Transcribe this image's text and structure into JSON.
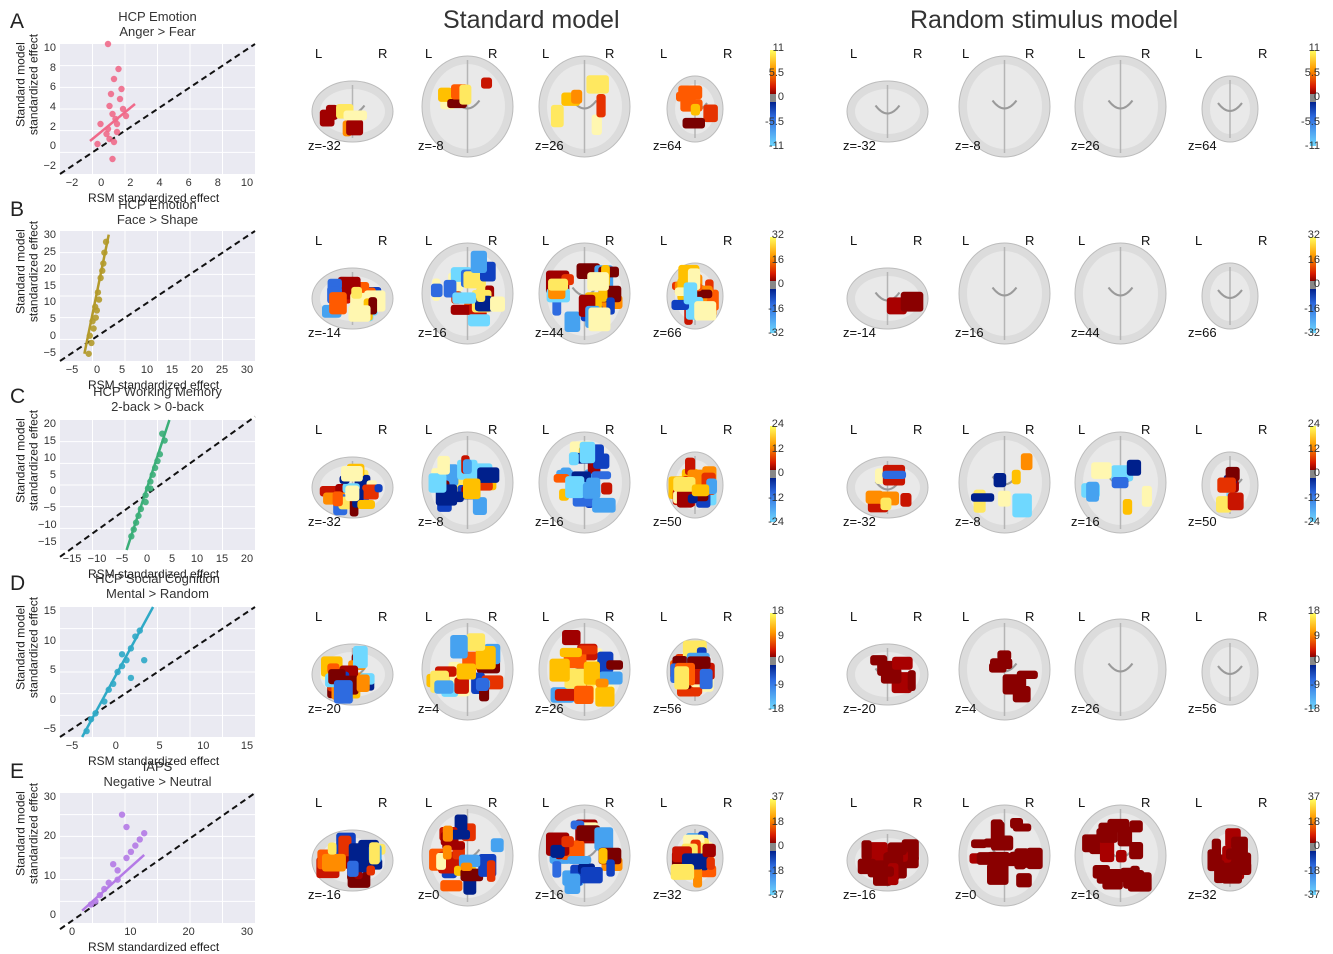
{
  "headings": {
    "standard": "Standard model",
    "random": "Random stimulus model"
  },
  "lr": {
    "left": "L",
    "right": "R"
  },
  "panels": [
    {
      "letter": "A",
      "title1": "HCP Emotion",
      "title2": "Anger > Fear",
      "ylabel1": "Standard model",
      "ylabel2": "standardized effect",
      "xlabel": "RSM standardized effect",
      "xticks": [
        "−2",
        "0",
        "2",
        "4",
        "6",
        "8",
        "10"
      ],
      "yticks": [
        "10",
        "8",
        "6",
        "4",
        "2",
        "0",
        "−2"
      ],
      "color": "#f06a8a",
      "zs": [
        "z=-32",
        "z=-8",
        "z=26",
        "z=64"
      ],
      "cbar": [
        "11",
        "5.5",
        "0",
        "-5.5",
        "-11"
      ]
    },
    {
      "letter": "B",
      "title1": "HCP Emotion",
      "title2": "Face > Shape",
      "ylabel1": "Standard model",
      "ylabel2": "standardized effect",
      "xlabel": "RSM standardized effect",
      "xticks": [
        "−5",
        "0",
        "5",
        "10",
        "15",
        "20",
        "25",
        "30"
      ],
      "yticks": [
        "30",
        "25",
        "20",
        "15",
        "10",
        "5",
        "0",
        "−5"
      ],
      "color": "#b39a2a",
      "zs": [
        "z=-14",
        "z=16",
        "z=44",
        "z=66"
      ],
      "cbar": [
        "32",
        "16",
        "0",
        "-16",
        "-32"
      ]
    },
    {
      "letter": "C",
      "title1": "HCP Working Memory",
      "title2": "2-back > 0-back",
      "ylabel1": "Standard model",
      "ylabel2": "standardized effect",
      "xlabel": "RSM standardized effect",
      "xticks": [
        "−15",
        "−10",
        "−5",
        "0",
        "5",
        "10",
        "15",
        "20"
      ],
      "yticks": [
        "20",
        "15",
        "10",
        "5",
        "0",
        "−5",
        "−10",
        "−15"
      ],
      "color": "#3aae78",
      "zs": [
        "z=-32",
        "z=-8",
        "z=16",
        "z=50"
      ],
      "cbar": [
        "24",
        "12",
        "0",
        "-12",
        "-24"
      ]
    },
    {
      "letter": "D",
      "title1": "HCP Social Cognition",
      "title2": "Mental > Random",
      "ylabel1": "Standard model",
      "ylabel2": "standardized effect",
      "xlabel": "RSM standardized effect",
      "xticks": [
        "−5",
        "0",
        "5",
        "10",
        "15"
      ],
      "yticks": [
        "15",
        "10",
        "5",
        "0",
        "−5"
      ],
      "color": "#2ea9c6",
      "zs": [
        "z=-20",
        "z=4",
        "z=26",
        "z=56"
      ],
      "cbar": [
        "18",
        "9",
        "0",
        "-9",
        "-18"
      ]
    },
    {
      "letter": "E",
      "title1": "IAPS",
      "title2": "Negative > Neutral",
      "ylabel1": "Standard model",
      "ylabel2": "standardized effect",
      "xlabel": "RSM standardized effect",
      "xticks": [
        "0",
        "10",
        "20",
        "30"
      ],
      "yticks": [
        "30",
        "20",
        "10",
        "0"
      ],
      "color": "#b47ae6",
      "zs": [
        "z=-16",
        "z=0",
        "z=16",
        "z=32"
      ],
      "cbar": [
        "37",
        "18",
        "0",
        "-18",
        "-37"
      ]
    }
  ],
  "random_zs": [
    [
      "z=-32",
      "z=-8",
      "z=26",
      "z=64"
    ],
    [
      "z=-14",
      "z=16",
      "z=44",
      "z=66"
    ],
    [
      "z=-32",
      "z=-8",
      "z=16",
      "z=50"
    ],
    [
      "z=-20",
      "z=4",
      "z=26",
      "z=56"
    ],
    [
      "z=-16",
      "z=0",
      "z=16",
      "z=32"
    ]
  ],
  "chart_data": [
    {
      "type": "scatter",
      "title": "HCP Emotion Anger > Fear",
      "xlabel": "RSM standardized effect",
      "ylabel": "Standard model standardized effect",
      "xlim": [
        -3,
        10
      ],
      "ylim": [
        -3,
        10
      ],
      "grid": true,
      "points": [
        [
          0.2,
          1.5
        ],
        [
          0.5,
          3.0
        ],
        [
          0.8,
          2.0
        ],
        [
          0.3,
          0.5
        ],
        [
          1.0,
          4.5
        ],
        [
          0.6,
          6.5
        ],
        [
          0.9,
          7.5
        ],
        [
          0.4,
          5.0
        ],
        [
          1.2,
          3.5
        ],
        [
          0.1,
          1.0
        ],
        [
          0.7,
          2.5
        ],
        [
          -0.3,
          2.0
        ],
        [
          0.5,
          -1.5
        ],
        [
          1.4,
          2.8
        ],
        [
          0.2,
          10.0
        ],
        [
          -0.5,
          0.0
        ],
        [
          0.8,
          1.2
        ],
        [
          0.3,
          3.8
        ],
        [
          1.1,
          5.5
        ],
        [
          0.6,
          0.2
        ]
      ],
      "fit": [
        [
          -1.0,
          0.3
        ],
        [
          2.0,
          4.0
        ]
      ],
      "reference_line": [
        [
          -3,
          -3
        ],
        [
          10,
          10
        ]
      ]
    },
    {
      "type": "scatter",
      "title": "HCP Emotion Face > Shape",
      "xlabel": "RSM standardized effect",
      "ylabel": "Standard model standardized effect",
      "xlim": [
        -5,
        31
      ],
      "ylim": [
        -5,
        31
      ],
      "grid": true,
      "points": [
        [
          0.5,
          2
        ],
        [
          1.0,
          6
        ],
        [
          1.5,
          10
        ],
        [
          2.0,
          14
        ],
        [
          2.5,
          18
        ],
        [
          3.0,
          22
        ],
        [
          3.5,
          28
        ],
        [
          1.2,
          4
        ],
        [
          0.8,
          0
        ],
        [
          2.2,
          12
        ],
        [
          1.8,
          9
        ],
        [
          2.8,
          20
        ],
        [
          0.3,
          -3
        ],
        [
          1.6,
          7
        ],
        [
          3.2,
          25
        ]
      ],
      "fit": [
        [
          -0.5,
          -3
        ],
        [
          4.0,
          30
        ]
      ],
      "reference_line": [
        [
          -5,
          -5
        ],
        [
          31,
          31
        ]
      ]
    },
    {
      "type": "scatter",
      "title": "HCP Working Memory 2-back > 0-back",
      "xlabel": "RSM standardized effect",
      "ylabel": "Standard model standardized effect",
      "xlim": [
        -18,
        23
      ],
      "ylim": [
        -16,
        22
      ],
      "grid": true,
      "points": [
        [
          -3,
          -12
        ],
        [
          -2,
          -8
        ],
        [
          -1,
          -4
        ],
        [
          0,
          0
        ],
        [
          1,
          4
        ],
        [
          2,
          8
        ],
        [
          3,
          12
        ],
        [
          4,
          16
        ],
        [
          -1.5,
          -6
        ],
        [
          0.5,
          2
        ],
        [
          1.5,
          6
        ],
        [
          2.5,
          10
        ],
        [
          3.5,
          18
        ],
        [
          -2.5,
          -10
        ],
        [
          0,
          -2
        ],
        [
          1,
          2
        ]
      ],
      "fit": [
        [
          -4,
          -16
        ],
        [
          5,
          22
        ]
      ],
      "reference_line": [
        [
          -18,
          -18
        ],
        [
          23,
          23
        ]
      ]
    },
    {
      "type": "scatter",
      "title": "HCP Social Cognition Mental > Random",
      "xlabel": "RSM standardized effect",
      "ylabel": "Standard model standardized effect",
      "xlim": [
        -5,
        17
      ],
      "ylim": [
        -5,
        17
      ],
      "grid": true,
      "points": [
        [
          -2,
          -4
        ],
        [
          -1,
          -1
        ],
        [
          0,
          1
        ],
        [
          1,
          4
        ],
        [
          2,
          7
        ],
        [
          3,
          10
        ],
        [
          4,
          13
        ],
        [
          1.5,
          6
        ],
        [
          2.5,
          8
        ],
        [
          3.5,
          12
        ],
        [
          0.5,
          3
        ],
        [
          -1.5,
          -2
        ],
        [
          2,
          9
        ],
        [
          4.5,
          8
        ],
        [
          3,
          5
        ]
      ],
      "fit": [
        [
          -2.5,
          -5
        ],
        [
          5.5,
          17
        ]
      ],
      "reference_line": [
        [
          -5,
          -5
        ],
        [
          17,
          17
        ]
      ]
    },
    {
      "type": "scatter",
      "title": "IAPS Negative > Neutral",
      "xlabel": "RSM standardized effect",
      "ylabel": "Standard model standardized effect",
      "xlim": [
        -7,
        37
      ],
      "ylim": [
        -5,
        37
      ],
      "grid": true,
      "points": [
        [
          0,
          1
        ],
        [
          2,
          4
        ],
        [
          4,
          8
        ],
        [
          6,
          12
        ],
        [
          8,
          16
        ],
        [
          10,
          20
        ],
        [
          7,
          30
        ],
        [
          5,
          14
        ],
        [
          3,
          6
        ],
        [
          9,
          18
        ],
        [
          11,
          22
        ],
        [
          6,
          9
        ],
        [
          1,
          2
        ],
        [
          8,
          26
        ],
        [
          12,
          24
        ]
      ],
      "fit": [
        [
          -2,
          -1
        ],
        [
          12,
          17
        ]
      ],
      "reference_line": [
        [
          -7,
          -7
        ],
        [
          37,
          37
        ]
      ]
    }
  ]
}
